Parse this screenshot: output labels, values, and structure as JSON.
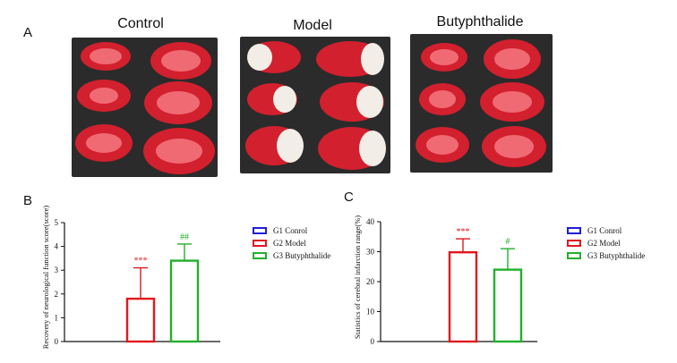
{
  "panels": {
    "a": {
      "letter": "A",
      "groups": [
        {
          "title": "Control"
        },
        {
          "title": "Model"
        },
        {
          "title": "Butyphthalide"
        }
      ]
    },
    "b": {
      "letter": "B"
    },
    "c": {
      "letter": "C"
    }
  },
  "colors": {
    "g1": "#1f1fd6",
    "g2": "#e0181e",
    "g3": "#22b02a",
    "tissue_dark": "#d2202e",
    "tissue_light": "#f06a74",
    "infarct": "#f2ede6",
    "tray": "#2b2b2b"
  },
  "chart_data": [
    {
      "type": "bar",
      "ylabel": "Recovery of neurological function score(score)",
      "ylim": [
        0,
        5
      ],
      "yticks": [
        "0",
        "1",
        "2",
        "3",
        "4",
        "5"
      ],
      "series": [
        {
          "name": "G1 Conrol",
          "value": 0,
          "error": 0,
          "annotation": ""
        },
        {
          "name": "G2 Model",
          "value": 1.8,
          "error": 1.3,
          "annotation": "***"
        },
        {
          "name": "G3 Butyphthalide",
          "value": 3.4,
          "error": 0.7,
          "annotation": "##"
        }
      ],
      "legend": "right"
    },
    {
      "type": "bar",
      "ylabel": "Statistics of cerebral infarction range(%)",
      "ylim": [
        0,
        40
      ],
      "yticks": [
        "0",
        "10",
        "20",
        "30",
        "40"
      ],
      "series": [
        {
          "name": "G1 Conrol",
          "value": 0,
          "error": 0,
          "annotation": ""
        },
        {
          "name": "G2 Model",
          "value": 29.8,
          "error": 4.5,
          "annotation": "***"
        },
        {
          "name": "G3 Butyphthalide",
          "value": 24,
          "error": 7,
          "annotation": "#"
        }
      ],
      "legend": "right"
    }
  ]
}
